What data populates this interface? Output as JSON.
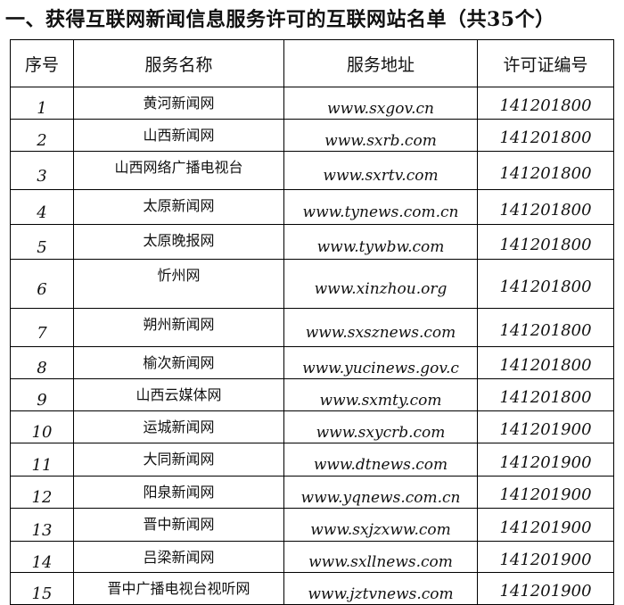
{
  "title": "一、获得互联网新闻信息服务许可的互联网站名单（共35个）",
  "headers": [
    "序号",
    "服务名称",
    "服务地址",
    "许可证编号"
  ],
  "rows": [
    {
      "no": "1",
      "name": "黄河新闻网",
      "url": "www.sxgov.cn",
      "license": "141201800"
    },
    {
      "no": "2",
      "name": "山西新闻网",
      "url": "www.sxrb.com",
      "license": "141201800"
    },
    {
      "no": "3",
      "name": "山西网络广播电视台",
      "url": "www.sxrtv.com",
      "license": "141201800"
    },
    {
      "no": "4",
      "name": "太原新闻网",
      "url": "www.tynews.com.cn",
      "license": "141201800"
    },
    {
      "no": "5",
      "name": "太原晚报网",
      "url": "www.tywbw.com",
      "license": "141201800"
    },
    {
      "no": "6",
      "name": "忻州网",
      "url": "www.xinzhou.org",
      "license": "141201800"
    },
    {
      "no": "7",
      "name": "朔州新闻网",
      "url": "www.sxsznews.com",
      "license": "141201800"
    },
    {
      "no": "8",
      "name": "榆次新闻网",
      "url": "www.yucinews.gov.c",
      "license": "141201800"
    },
    {
      "no": "9",
      "name": "山西云媒体网",
      "url": "www.sxmty.com",
      "license": "141201800"
    },
    {
      "no": "10",
      "name": "运城新闻网",
      "url": "www.sxycrb.com",
      "license": "141201900"
    },
    {
      "no": "11",
      "name": "大同新闻网",
      "url": "www.dtnews.com",
      "license": "141201900"
    },
    {
      "no": "12",
      "name": "阳泉新闻网",
      "url": "www.yqnews.com.cn",
      "license": "141201900"
    },
    {
      "no": "13",
      "name": "晋中新闻网",
      "url": "www.sxjzxww.com",
      "license": "141201900"
    },
    {
      "no": "14",
      "name": "吕梁新闻网",
      "url": "www.sxllnews.com",
      "license": "141201900"
    },
    {
      "no": "15",
      "name": "晋中广播电视台视听网",
      "url": "www.jztvnews.com",
      "license": "141201900"
    }
  ]
}
